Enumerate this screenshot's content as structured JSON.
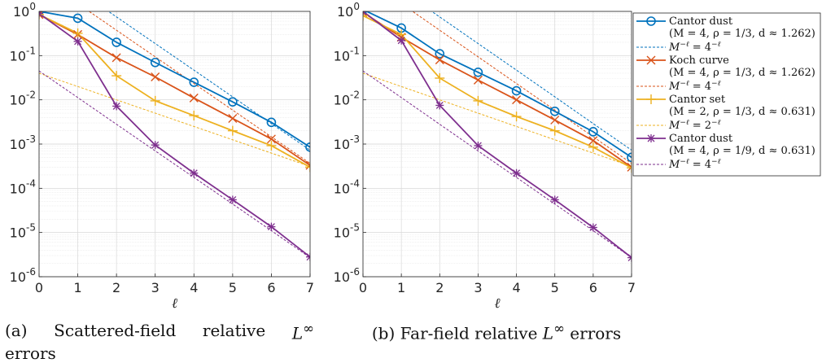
{
  "chart_data": [
    {
      "type": "line",
      "panel": "(a)",
      "caption_parts": [
        "(a)",
        "Scattered-field",
        "relative",
        "L",
        "∞",
        "errors"
      ],
      "xlabel": "ℓ",
      "ylabel": "",
      "yscale": "log",
      "xlim": [
        0,
        7
      ],
      "ylim": [
        1e-06,
        1
      ],
      "x": [
        0,
        1,
        2,
        3,
        4,
        5,
        6,
        7
      ],
      "x_ticks": [
        "0",
        "1",
        "2",
        "3",
        "4",
        "5",
        "6",
        "7"
      ],
      "y_ticks": [
        {
          "base": "10",
          "exp": "0"
        },
        {
          "base": "10",
          "exp": "-1"
        },
        {
          "base": "10",
          "exp": "-2"
        },
        {
          "base": "10",
          "exp": "-3"
        },
        {
          "base": "10",
          "exp": "-4"
        },
        {
          "base": "10",
          "exp": "-5"
        },
        {
          "base": "10",
          "exp": "-6"
        }
      ],
      "grid": true,
      "series": [
        {
          "name": "Cantor dust (M = 4, ρ = 1/3, d ≈ 1.262)",
          "color": "#0072BD",
          "marker": "circle",
          "values": [
            1.0,
            0.7,
            0.2,
            0.07,
            0.025,
            0.009,
            0.0031,
            0.00085
          ]
        },
        {
          "name": "Koch curve (M = 4, ρ = 1/3, d ≈ 1.262)",
          "color": "#D95319",
          "marker": "x",
          "values": [
            0.85,
            0.3,
            0.09,
            0.033,
            0.011,
            0.0038,
            0.0013,
            0.00033
          ]
        },
        {
          "name": "Cantor set (M = 2, ρ = 1/3, d ≈ 0.631)",
          "color": "#EDB120",
          "marker": "plus",
          "values": [
            0.85,
            0.32,
            0.035,
            0.0095,
            0.0044,
            0.002,
            0.00092,
            0.0003
          ]
        },
        {
          "name": "Cantor dust (M = 4, ρ = 1/9, d ≈ 0.631)",
          "color": "#7E2F8E",
          "marker": "star",
          "values": [
            0.9,
            0.21,
            0.0072,
            0.00095,
            0.00022,
            5.5e-05,
            1.35e-05,
            2.8e-06
          ]
        }
      ],
      "reference_lines": [
        {
          "label": "M^-ℓ = 4^-ℓ",
          "color": "#0072BD",
          "values": [
            12.0,
            3.0,
            0.75,
            0.1875,
            0.047,
            0.0117,
            0.0029,
            0.00073
          ]
        },
        {
          "label": "M^-ℓ = 4^-ℓ",
          "color": "#D95319",
          "values": [
            6.0,
            1.5,
            0.375,
            0.094,
            0.0234,
            0.00586,
            0.00146,
            0.000366
          ]
        },
        {
          "label": "M^-ℓ = 2^-ℓ",
          "color": "#EDB120",
          "values": [
            0.04,
            0.02,
            0.01,
            0.005,
            0.0025,
            0.00125,
            0.000625,
            0.0003125
          ]
        },
        {
          "label": "M^-ℓ = 4^-ℓ",
          "color": "#7E2F8E",
          "values": [
            0.045,
            0.01125,
            0.0028,
            0.0007,
            0.000176,
            4.4e-05,
            1.1e-05,
            2.7e-06
          ]
        }
      ]
    },
    {
      "type": "line",
      "panel": "(b)",
      "caption_parts": [
        "(b) Far-field relative ",
        "L",
        "∞",
        " errors"
      ],
      "xlabel": "ℓ",
      "ylabel": "",
      "yscale": "log",
      "xlim": [
        0,
        7
      ],
      "ylim": [
        1e-06,
        1
      ],
      "x": [
        0,
        1,
        2,
        3,
        4,
        5,
        6,
        7
      ],
      "x_ticks": [
        "0",
        "1",
        "2",
        "3",
        "4",
        "5",
        "6",
        "7"
      ],
      "y_ticks": [
        {
          "base": "10",
          "exp": "0"
        },
        {
          "base": "10",
          "exp": "-1"
        },
        {
          "base": "10",
          "exp": "-2"
        },
        {
          "base": "10",
          "exp": "-3"
        },
        {
          "base": "10",
          "exp": "-4"
        },
        {
          "base": "10",
          "exp": "-5"
        },
        {
          "base": "10",
          "exp": "-6"
        }
      ],
      "grid": true,
      "legend_placement": "right",
      "series": [
        {
          "name": "Cantor dust (M = 4, ρ = 1/3, d ≈ 1.262)",
          "color": "#0072BD",
          "marker": "circle",
          "values": [
            1.1,
            0.42,
            0.11,
            0.042,
            0.016,
            0.0055,
            0.0019,
            0.0005
          ]
        },
        {
          "name": "Koch curve (M = 4, ρ = 1/3, d ≈ 1.262)",
          "color": "#D95319",
          "marker": "x",
          "values": [
            0.95,
            0.26,
            0.08,
            0.028,
            0.01,
            0.0035,
            0.0012,
            0.0003
          ]
        },
        {
          "name": "Cantor set (M = 2, ρ = 1/3, d ≈ 0.631)",
          "color": "#EDB120",
          "marker": "plus",
          "values": [
            0.8,
            0.3,
            0.031,
            0.0095,
            0.0042,
            0.002,
            0.00085,
            0.00029
          ]
        },
        {
          "name": "Cantor dust (M = 4, ρ = 1/9, d ≈ 0.631)",
          "color": "#7E2F8E",
          "marker": "star",
          "values": [
            1.0,
            0.22,
            0.0075,
            0.00092,
            0.00022,
            5.5e-05,
            1.3e-05,
            2.7e-06
          ]
        }
      ],
      "reference_lines": [
        {
          "label": "M^-ℓ = 4^-ℓ",
          "color": "#0072BD",
          "values": [
            12.0,
            3.0,
            0.75,
            0.1875,
            0.047,
            0.0117,
            0.0029,
            0.00073
          ]
        },
        {
          "label": "M^-ℓ = 4^-ℓ",
          "color": "#D95319",
          "values": [
            6.0,
            1.5,
            0.375,
            0.094,
            0.0234,
            0.00586,
            0.00146,
            0.000366
          ]
        },
        {
          "label": "M^-ℓ = 2^-ℓ",
          "color": "#EDB120",
          "values": [
            0.04,
            0.02,
            0.01,
            0.005,
            0.0025,
            0.00125,
            0.000625,
            0.0003125
          ]
        },
        {
          "label": "M^-ℓ = 4^-ℓ",
          "color": "#7E2F8E",
          "values": [
            0.045,
            0.01125,
            0.0028,
            0.0007,
            0.000176,
            4.4e-05,
            1.1e-05,
            2.7e-06
          ]
        }
      ]
    }
  ],
  "legend": [
    {
      "line1": "Cantor dust",
      "line2": "(M = 4, ρ = 1/3, d ≈ 1.262)",
      "color": "#0072BD",
      "marker": "circle",
      "style": "solid"
    },
    {
      "line1": "M^−ℓ = 4^−ℓ",
      "color": "#0072BD",
      "style": "dashed",
      "mbase": "4"
    },
    {
      "line1": "Koch curve",
      "line2": "(M = 4, ρ = 1/3, d ≈ 1.262)",
      "color": "#D95319",
      "marker": "x",
      "style": "solid"
    },
    {
      "line1": "M^−ℓ = 4^−ℓ",
      "color": "#D95319",
      "style": "dashed",
      "mbase": "4"
    },
    {
      "line1": "Cantor set",
      "line2": "(M = 2, ρ = 1/3, d ≈ 0.631)",
      "color": "#EDB120",
      "marker": "plus",
      "style": "solid"
    },
    {
      "line1": "M^−ℓ = 2^−ℓ",
      "color": "#EDB120",
      "style": "dashed",
      "mbase": "2"
    },
    {
      "line1": "Cantor dust",
      "line2": "(M = 4, ρ = 1/9, d ≈ 0.631)",
      "color": "#7E2F8E",
      "marker": "star",
      "style": "solid"
    },
    {
      "line1": "M^−ℓ = 4^−ℓ",
      "color": "#7E2F8E",
      "style": "dashed",
      "mbase": "4"
    }
  ],
  "captions": {
    "a_word1": "(a)",
    "a_word2": "Scattered-field",
    "a_word3": "relative",
    "a_L": "L",
    "a_inf": "∞",
    "a_line2": "errors",
    "b_pre": "(b) Far-field relative ",
    "b_L": "L",
    "b_inf": "∞",
    "b_post": " errors"
  }
}
